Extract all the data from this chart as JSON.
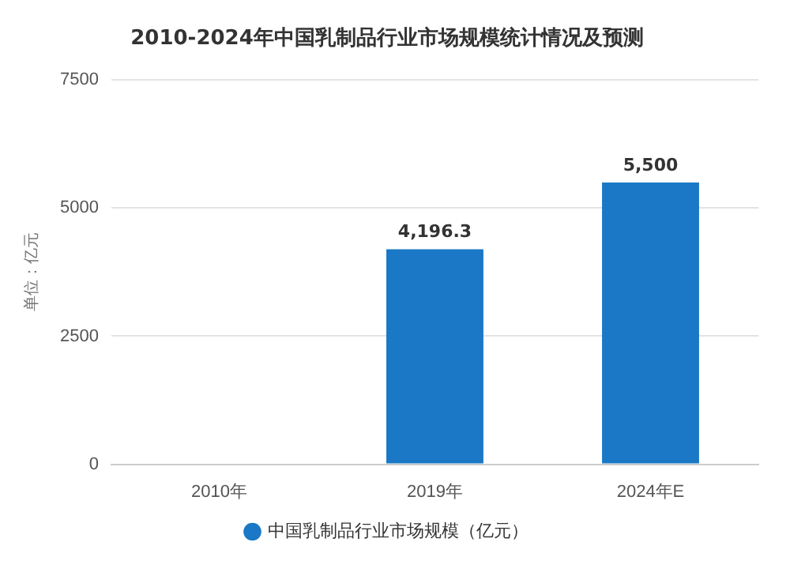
{
  "chart_data": {
    "type": "bar",
    "title": "2010-2024年中国乳制品行业市场规模统计情况及预测",
    "ylabel": "单位：亿元",
    "categories": [
      "2010年",
      "2019年",
      "2024年E"
    ],
    "series": [
      {
        "name": "中国乳制品行业市场规模（亿元）",
        "color": "#1a78c6",
        "values": [
          null,
          4196.3,
          5500
        ],
        "value_labels": [
          null,
          "4,196.3",
          "5,500"
        ]
      }
    ],
    "ylim": [
      0,
      7500
    ],
    "yticks": [
      0,
      2500,
      5000,
      7500
    ],
    "grid": "y",
    "legend": "bottom"
  }
}
